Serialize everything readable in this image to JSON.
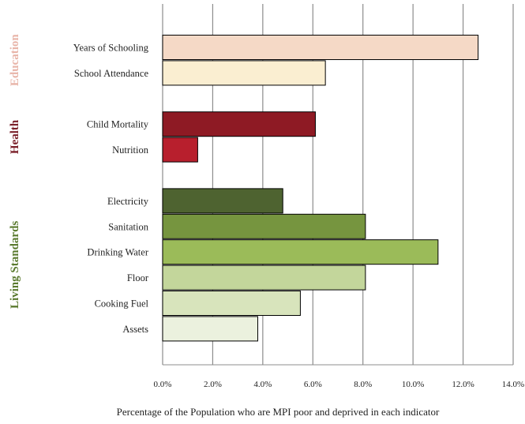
{
  "chart_data": {
    "type": "bar",
    "orientation": "horizontal",
    "xlabel": "Percentage of the Population who are MPI poor and deprived in each indicator",
    "xlim": [
      0,
      14
    ],
    "x_ticks": [
      "0.0%",
      "2.0%",
      "4.0%",
      "6.0%",
      "8.0%",
      "10.0%",
      "12.0%",
      "14.0%"
    ],
    "grid": "vertical",
    "groups": [
      {
        "name": "Education",
        "color": "#e8b4a8",
        "bars": [
          {
            "label": "Years of Schooling",
            "value": 12.6,
            "color": "#f5d9c6"
          },
          {
            "label": "School Attendance",
            "value": 6.5,
            "color": "#faeed1"
          }
        ]
      },
      {
        "name": "Health",
        "color": "#7a1e28",
        "bars": [
          {
            "label": "Child Mortality",
            "value": 6.1,
            "color": "#8e1a24"
          },
          {
            "label": "Nutrition",
            "value": 1.4,
            "color": "#b81f2d"
          }
        ]
      },
      {
        "name": "Living Standards",
        "color": "#5a7a2e",
        "bars": [
          {
            "label": "Electricity",
            "value": 4.8,
            "color": "#4e6330"
          },
          {
            "label": "Sanitation",
            "value": 8.1,
            "color": "#76953f"
          },
          {
            "label": "Drinking Water",
            "value": 11.0,
            "color": "#9bbb59"
          },
          {
            "label": "Floor",
            "value": 8.1,
            "color": "#c3d69b"
          },
          {
            "label": "Cooking Fuel",
            "value": 5.5,
            "color": "#d8e4bc"
          },
          {
            "label": "Assets",
            "value": 3.8,
            "color": "#ebf1de"
          }
        ]
      }
    ]
  }
}
